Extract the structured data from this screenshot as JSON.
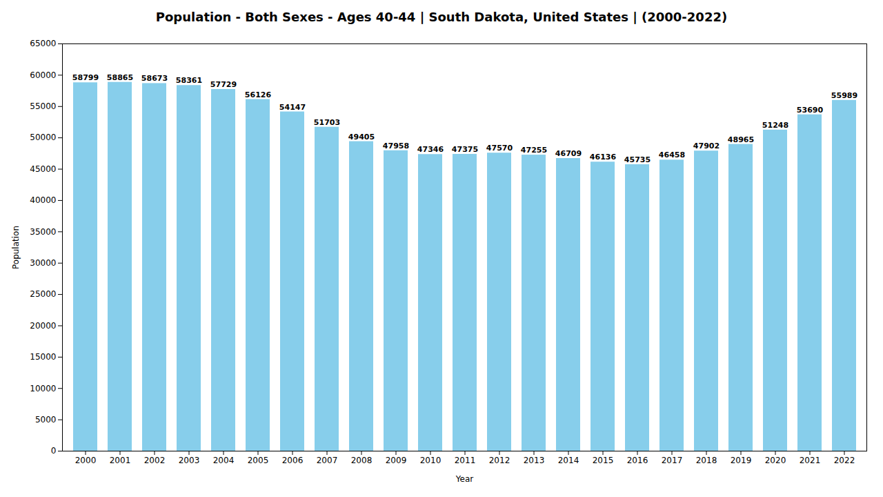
{
  "chart_data": {
    "type": "bar",
    "title": "Population - Both Sexes - Ages 40-44 | South Dakota, United States |  (2000-2022)",
    "xlabel": "Year",
    "ylabel": "Population",
    "categories": [
      "2000",
      "2001",
      "2002",
      "2003",
      "2004",
      "2005",
      "2006",
      "2007",
      "2008",
      "2009",
      "2010",
      "2011",
      "2012",
      "2013",
      "2014",
      "2015",
      "2016",
      "2017",
      "2018",
      "2019",
      "2020",
      "2021",
      "2022"
    ],
    "values": [
      58799,
      58865,
      58673,
      58361,
      57729,
      56126,
      54147,
      51703,
      49405,
      47958,
      47346,
      47375,
      47570,
      47255,
      46709,
      46136,
      45735,
      46458,
      47902,
      48965,
      51248,
      53690,
      55989
    ],
    "color": "#87CEEB",
    "ylim": [
      0,
      65000
    ],
    "yticks": [
      0,
      5000,
      10000,
      15000,
      20000,
      25000,
      30000,
      35000,
      40000,
      45000,
      50000,
      55000,
      60000,
      65000
    ],
    "grid": false,
    "data_labels": true
  }
}
